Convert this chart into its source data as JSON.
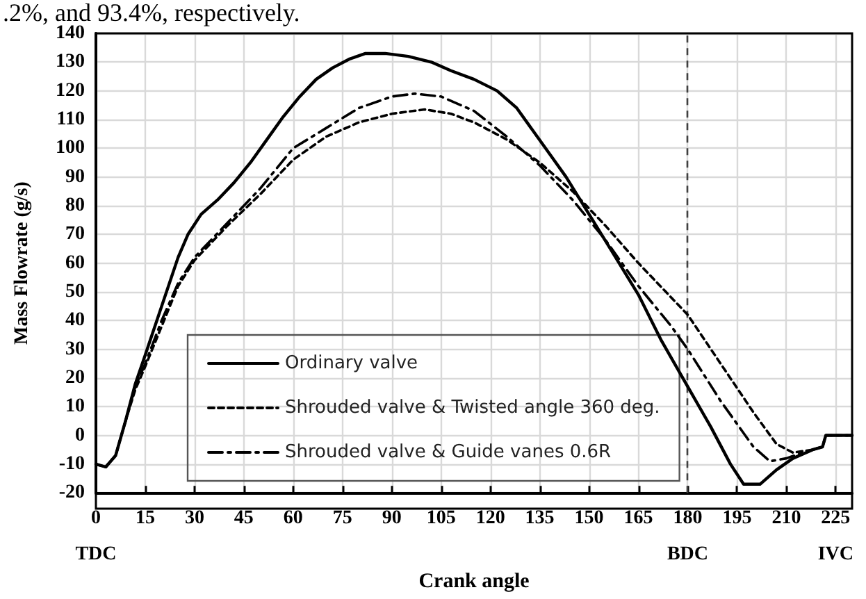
{
  "chart_data": {
    "type": "line",
    "xlabel": "Crank angle",
    "ylabel": "Mass Flowrate (g/s)",
    "xlim": [
      0,
      230
    ],
    "xticks": [
      {
        "value": 0,
        "label": "0\n\nTDC"
      },
      15,
      30,
      45,
      60,
      75,
      90,
      105,
      120,
      135,
      150,
      165,
      {
        "value": 180,
        "label": "180\n\nBDC"
      },
      195,
      210,
      {
        "value": 225,
        "label": "225\n\nIVC"
      }
    ],
    "ylim": [
      -20,
      140
    ],
    "yticks": [
      -20,
      -10,
      0,
      10,
      20,
      30,
      40,
      50,
      60,
      70,
      80,
      90,
      100,
      110,
      120,
      130,
      140
    ],
    "grid": true,
    "legend": "bottom",
    "marker": "none",
    "annotations": [
      ".2%, and 93.4%, respectively."
    ],
    "ref_lines": [
      {
        "axis": "x",
        "value": 180,
        "color": "#404040",
        "line_style": "dashed"
      }
    ],
    "series": [
      {
        "name": "Ordinary valve",
        "color": "#000000",
        "line_style": "solid",
        "x": [
          0,
          3,
          6,
          9,
          12,
          15,
          20,
          25,
          28,
          32,
          37,
          42,
          47,
          52,
          57,
          62,
          67,
          72,
          77,
          82,
          88,
          95,
          102,
          108,
          115,
          122,
          128,
          133,
          138,
          143,
          150,
          157,
          165,
          172,
          180,
          187,
          193,
          197,
          202,
          207,
          212,
          218,
          221,
          222,
          230
        ],
        "values": [
          -10,
          -11,
          -7,
          5,
          18,
          28,
          45,
          62,
          70,
          77,
          82,
          88,
          95,
          103,
          111,
          118,
          124,
          128,
          131,
          133,
          133,
          132,
          130,
          127,
          124,
          120,
          114,
          106,
          98,
          90,
          77,
          64,
          49,
          33,
          17,
          3,
          -10,
          -17,
          -17,
          -12,
          -8,
          -5,
          -4,
          0,
          0
        ]
      },
      {
        "name": "Shrouded valve & Twisted angle 360 deg.",
        "color": "#000000",
        "line_style": "dashed",
        "x": [
          0,
          3,
          6,
          9,
          12,
          15,
          20,
          25,
          30,
          40,
          50,
          60,
          70,
          80,
          90,
          100,
          108,
          115,
          125,
          135,
          145,
          155,
          165,
          175,
          180,
          190,
          200,
          207,
          212,
          218,
          221,
          222,
          230
        ],
        "values": [
          -10,
          -11,
          -7,
          5,
          16,
          24,
          38,
          52,
          61,
          73,
          84,
          96,
          104,
          109,
          112,
          113.5,
          112,
          109,
          103,
          95,
          85,
          73,
          60,
          48,
          42,
          25,
          8,
          -3,
          -6,
          -5,
          -4,
          0,
          0
        ]
      },
      {
        "name": "Shrouded valve & Guide vanes 0.6R",
        "color": "#000000",
        "line_style": "dashdot",
        "x": [
          0,
          3,
          6,
          9,
          12,
          15,
          20,
          25,
          30,
          40,
          50,
          60,
          70,
          80,
          90,
          97,
          105,
          115,
          125,
          135,
          145,
          155,
          165,
          175,
          180,
          190,
          200,
          205,
          210,
          215,
          218,
          221,
          222,
          230
        ],
        "values": [
          -10,
          -11,
          -7,
          5,
          17,
          25,
          40,
          53,
          62,
          74,
          86,
          100,
          107,
          114,
          118,
          119,
          118,
          113,
          104,
          94,
          82,
          68,
          52,
          38,
          30,
          12,
          -4,
          -9,
          -8,
          -6,
          -5,
          -4,
          0,
          0
        ]
      }
    ]
  }
}
